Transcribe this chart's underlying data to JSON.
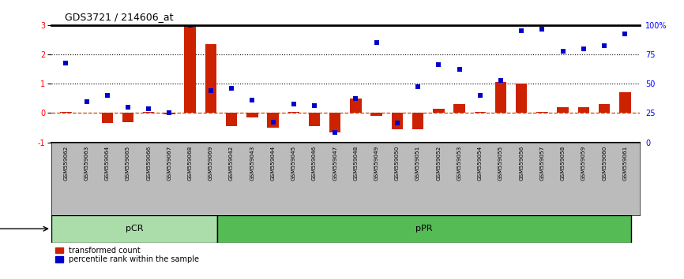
{
  "title": "GDS3721 / 214606_at",
  "samples": [
    "GSM559062",
    "GSM559063",
    "GSM559064",
    "GSM559065",
    "GSM559066",
    "GSM559067",
    "GSM559068",
    "GSM559069",
    "GSM559042",
    "GSM559043",
    "GSM559044",
    "GSM559045",
    "GSM559046",
    "GSM559047",
    "GSM559048",
    "GSM559049",
    "GSM559050",
    "GSM559051",
    "GSM559052",
    "GSM559053",
    "GSM559054",
    "GSM559055",
    "GSM559056",
    "GSM559057",
    "GSM559058",
    "GSM559059",
    "GSM559060",
    "GSM559061"
  ],
  "transformed_count": [
    0.05,
    0.0,
    -0.35,
    -0.3,
    0.05,
    -0.05,
    3.0,
    2.35,
    -0.45,
    -0.15,
    -0.5,
    0.05,
    -0.45,
    -0.65,
    0.5,
    -0.1,
    -0.55,
    -0.55,
    0.15,
    0.3,
    0.05,
    1.05,
    1.0,
    0.05,
    0.2,
    0.2,
    0.3,
    0.7
  ],
  "percentile_rank": [
    1.7,
    0.4,
    0.6,
    0.2,
    0.15,
    0.0,
    3.0,
    0.75,
    0.85,
    0.45,
    -0.3,
    0.3,
    0.25,
    -0.65,
    0.5,
    2.4,
    -0.35,
    0.9,
    1.65,
    1.5,
    0.6,
    1.1,
    2.8,
    2.85,
    2.1,
    2.2,
    2.3,
    2.7
  ],
  "pCR_count": 8,
  "pPR_count": 20,
  "bar_color": "#cc2200",
  "dot_color": "#0000cc",
  "ylim": [
    -1.0,
    3.0
  ],
  "yticks_left": [
    -1,
    0,
    1,
    2,
    3
  ],
  "yticks_right_vals": [
    "0",
    "25",
    "50",
    "75",
    "100%"
  ],
  "yticks_right_pos": [
    -1,
    0,
    1,
    2,
    3
  ],
  "pCR_color": "#aaddaa",
  "pPR_color": "#55bb55",
  "bg_color": "#bbbbbb"
}
